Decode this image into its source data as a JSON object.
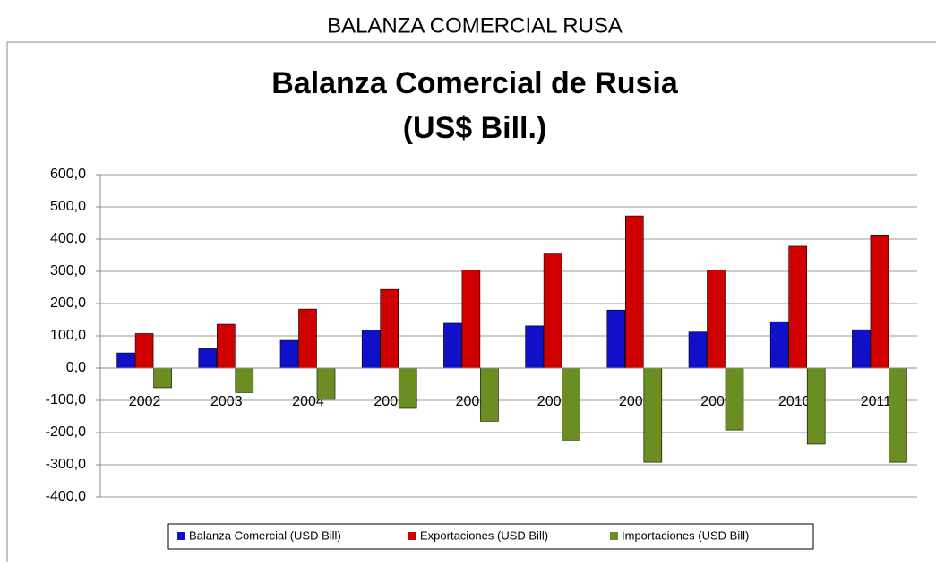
{
  "page_title": "BALANZA COMERCIAL RUSA",
  "chart_data": {
    "type": "bar",
    "title": [
      "Balanza Comercial de Rusia",
      "(US$ Bill.)"
    ],
    "categories": [
      "2002",
      "2003",
      "2004",
      "2005",
      "2006",
      "2007",
      "2008",
      "2009",
      "2010p",
      "2011p"
    ],
    "series": [
      {
        "name": "Balanza Comercial (USD Bill)",
        "color": "#1010c8",
        "values": [
          47,
          60,
          86,
          118,
          139,
          131,
          180,
          112,
          144,
          119
        ]
      },
      {
        "name": "Exportaciones (USD Bill)",
        "color": "#d00000",
        "values": [
          107,
          136,
          183,
          244,
          304,
          354,
          472,
          304,
          378,
          413
        ]
      },
      {
        "name": "Importaciones (USD Bill)",
        "color": "#6b8e23",
        "values": [
          -61,
          -76,
          -97,
          -125,
          -165,
          -223,
          -292,
          -192,
          -236,
          -292
        ]
      }
    ],
    "ylim": [
      -400,
      600
    ],
    "yticks": [
      {
        "value": -400,
        "label": "-400,0"
      },
      {
        "value": -300,
        "label": "-300,0"
      },
      {
        "value": -200,
        "label": "-200,0"
      },
      {
        "value": -100,
        "label": "-100,0"
      },
      {
        "value": 0,
        "label": "0,0"
      },
      {
        "value": 100,
        "label": "100,0"
      },
      {
        "value": 200,
        "label": "200,0"
      },
      {
        "value": 300,
        "label": "300,0"
      },
      {
        "value": 400,
        "label": "400,0"
      },
      {
        "value": 500,
        "label": "500,0"
      },
      {
        "value": 600,
        "label": "600,0"
      }
    ],
    "grid": true,
    "legend": "bottom"
  }
}
